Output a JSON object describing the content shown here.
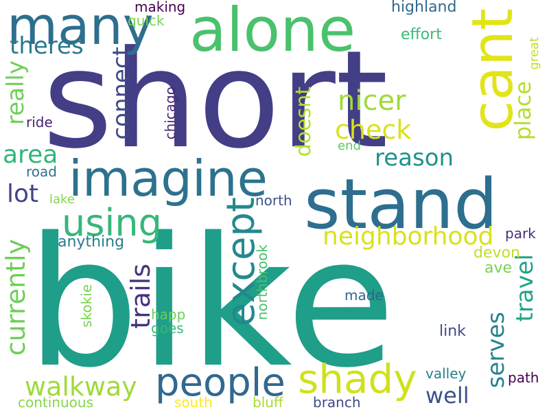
{
  "words": [
    {
      "text": "bike",
      "color": "#1f9e89",
      "vertical": false
    },
    {
      "text": "short",
      "color": "#433e85",
      "vertical": false
    },
    {
      "text": "stand",
      "color": "#2e6e8e",
      "vertical": false
    },
    {
      "text": "alone",
      "color": "#4ac16d",
      "vertical": false
    },
    {
      "text": "imagine",
      "color": "#2c728e",
      "vertical": false
    },
    {
      "text": "many",
      "color": "#2e6e8e",
      "vertical": false
    },
    {
      "text": "cant",
      "color": "#e2e418",
      "vertical": true
    },
    {
      "text": "people",
      "color": "#31688e",
      "vertical": false
    },
    {
      "text": "shady",
      "color": "#d0e11c",
      "vertical": false
    },
    {
      "text": "except",
      "color": "#23888e",
      "vertical": true
    },
    {
      "text": "using",
      "color": "#35b779",
      "vertical": false
    },
    {
      "text": "neighborhood",
      "color": "#d8e219",
      "vertical": false
    },
    {
      "text": "walkway",
      "color": "#9fda3a",
      "vertical": false
    },
    {
      "text": "currently",
      "color": "#6ece58",
      "vertical": true
    },
    {
      "text": "trails",
      "color": "#46327e",
      "vertical": true
    },
    {
      "text": "nicer",
      "color": "#9fda3a",
      "vertical": false
    },
    {
      "text": "check",
      "color": "#d8e219",
      "vertical": false
    },
    {
      "text": "reason",
      "color": "#21918c",
      "vertical": false
    },
    {
      "text": "theres",
      "color": "#2a788e",
      "vertical": false
    },
    {
      "text": "really",
      "color": "#6ece58",
      "vertical": true
    },
    {
      "text": "connect",
      "color": "#3e4989",
      "vertical": true
    },
    {
      "text": "doesnt",
      "color": "#b5de2b",
      "vertical": true
    },
    {
      "text": "place",
      "color": "#b5de2b",
      "vertical": true
    },
    {
      "text": "area",
      "color": "#31b57b",
      "vertical": false
    },
    {
      "text": "lot",
      "color": "#414487",
      "vertical": false
    },
    {
      "text": "travel",
      "color": "#20a386",
      "vertical": true
    },
    {
      "text": "serves",
      "color": "#26828e",
      "vertical": true
    },
    {
      "text": "well",
      "color": "#3b528b",
      "vertical": false
    },
    {
      "text": "highland",
      "color": "#31688e",
      "vertical": false
    },
    {
      "text": "making",
      "color": "#440154",
      "vertical": false
    },
    {
      "text": "quick",
      "color": "#7ad151",
      "vertical": false
    },
    {
      "text": "effort",
      "color": "#3aba76",
      "vertical": false
    },
    {
      "text": "great",
      "color": "#c2df23",
      "vertical": true
    },
    {
      "text": "ride",
      "color": "#482173",
      "vertical": false
    },
    {
      "text": "chicago",
      "color": "#482878",
      "vertical": true
    },
    {
      "text": "road",
      "color": "#2c728e",
      "vertical": false
    },
    {
      "text": "end",
      "color": "#5ec962",
      "vertical": false
    },
    {
      "text": "lake",
      "color": "#86d549",
      "vertical": false
    },
    {
      "text": "north",
      "color": "#3b528b",
      "vertical": false
    },
    {
      "text": "anything",
      "color": "#287c8e",
      "vertical": false
    },
    {
      "text": "park",
      "color": "#472d7b",
      "vertical": false
    },
    {
      "text": "devon",
      "color": "#bddf26",
      "vertical": false
    },
    {
      "text": "ave",
      "color": "#7ad151",
      "vertical": false
    },
    {
      "text": "northbrook",
      "color": "#4ac16d",
      "vertical": true
    },
    {
      "text": "skokie",
      "color": "#7ad151",
      "vertical": true
    },
    {
      "text": "made",
      "color": "#32648e",
      "vertical": false
    },
    {
      "text": "happ",
      "color": "#6ece58",
      "vertical": false
    },
    {
      "text": "goes",
      "color": "#35b779",
      "vertical": false
    },
    {
      "text": "link",
      "color": "#3e4989",
      "vertical": false
    },
    {
      "text": "valley",
      "color": "#277f8e",
      "vertical": false
    },
    {
      "text": "path",
      "color": "#440154",
      "vertical": false
    },
    {
      "text": "continuous",
      "color": "#86d549",
      "vertical": false
    },
    {
      "text": "south",
      "color": "#fde725",
      "vertical": false
    },
    {
      "text": "bluff",
      "color": "#a8db34",
      "vertical": false
    },
    {
      "text": "branch",
      "color": "#3e4989",
      "vertical": false
    }
  ]
}
